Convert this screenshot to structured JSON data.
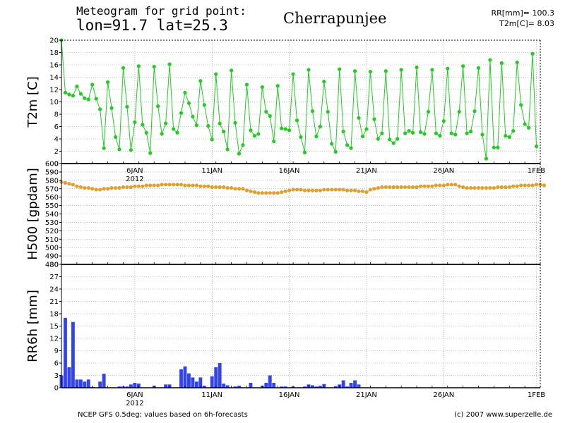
{
  "header": {
    "line1": "Meteogram for grid point:",
    "line2": "lon=91.7 lat=25.3",
    "location": "Cherrapunjee",
    "rr_total": "RR[mm]= 100.3",
    "t2m_current": "T2m[C]= 8.03"
  },
  "footer": {
    "source": "NCEP GFS 0.5deg; values based on 6h-forecasts",
    "copyright": "(c) 2007 www.superzelle.de"
  },
  "colors": {
    "t2m": "#22cc22",
    "h500": "#e0a030",
    "rr6h": "#3344ee",
    "grid": "#888888"
  },
  "chart_data": [
    {
      "type": "line",
      "ylabel": "T2m [C]",
      "ylim": [
        0,
        20
      ],
      "yticks": [
        0,
        2,
        4,
        6,
        8,
        10,
        12,
        14,
        16,
        18,
        20
      ],
      "xlim": [
        0,
        124
      ],
      "date_ticks": [
        {
          "x": 19,
          "label": "6JAN",
          "sub": "2012"
        },
        {
          "x": 39,
          "label": "11JAN",
          "sub": ""
        },
        {
          "x": 59,
          "label": "16JAN",
          "sub": ""
        },
        {
          "x": 79,
          "label": "21JAN",
          "sub": ""
        },
        {
          "x": 99,
          "label": "26JAN",
          "sub": ""
        },
        {
          "x": 123,
          "label": "1FEB",
          "sub": ""
        }
      ],
      "show_dates": true,
      "grid": true,
      "series": [
        {
          "values": [
            20.0,
            11.5,
            11.2,
            11.0,
            12.5,
            11.3,
            10.6,
            10.4,
            12.8,
            10.5,
            8.8,
            2.5,
            13.2,
            9.0,
            4.3,
            2.3,
            15.5,
            9.2,
            2.2,
            6.7,
            15.8,
            6.3,
            5.0,
            1.7,
            15.7,
            9.3,
            4.8,
            6.5,
            16.1,
            5.6,
            5.0,
            8.2,
            11.5,
            9.8,
            7.6,
            6.2,
            13.4,
            9.5,
            6.1,
            3.9,
            14.5,
            6.5,
            5.2,
            2.3,
            15.1,
            6.6,
            1.6,
            3.0,
            12.8,
            5.4,
            4.5,
            4.8,
            12.4,
            8.4,
            7.7,
            3.6,
            12.6,
            5.7,
            5.6,
            5.4,
            14.5,
            7.0,
            4.3,
            1.8,
            15.2,
            8.5,
            4.4,
            6.0,
            13.3,
            8.4,
            3.2,
            1.9,
            15.3,
            5.2,
            3.0,
            2.5,
            15.0,
            7.4,
            4.4,
            5.6,
            14.9,
            7.2,
            4.0,
            4.9,
            15.0,
            3.9,
            3.3,
            4.0,
            15.2,
            4.9,
            5.3,
            5.0,
            15.6,
            5.1,
            4.8,
            8.4,
            15.2,
            4.9,
            4.5,
            6.9,
            15.4,
            4.9,
            4.7,
            8.4,
            15.8,
            4.9,
            5.2,
            8.5,
            15.5,
            4.7,
            0.8,
            16.8,
            2.6,
            2.6,
            16.3,
            4.5,
            4.3,
            5.3,
            16.4,
            9.5,
            6.4,
            5.8,
            17.8,
            2.8
          ]
        }
      ]
    },
    {
      "type": "line",
      "ylabel": "H500 [gpdam]",
      "ylim": [
        480,
        600
      ],
      "yticks": [
        480,
        490,
        500,
        510,
        520,
        530,
        540,
        550,
        560,
        570,
        580,
        590,
        600
      ],
      "xlim": [
        0,
        124
      ],
      "date_ticks": [
        {
          "x": 19,
          "label": "6JAN",
          "sub": ""
        },
        {
          "x": 39,
          "label": "11JAN",
          "sub": ""
        },
        {
          "x": 59,
          "label": "16JAN",
          "sub": ""
        },
        {
          "x": 79,
          "label": "21JAN",
          "sub": ""
        },
        {
          "x": 99,
          "label": "26JAN",
          "sub": ""
        },
        {
          "x": 123,
          "label": "1FEB",
          "sub": ""
        }
      ],
      "show_dates": false,
      "grid": true,
      "series": [
        {
          "values": [
            578,
            577,
            576,
            575,
            573,
            572,
            571,
            571,
            570,
            569,
            569,
            570,
            570,
            571,
            571,
            571,
            572,
            572,
            572,
            573,
            573,
            573,
            574,
            574,
            574,
            574,
            575,
            575,
            575,
            575,
            575,
            575,
            574,
            574,
            574,
            574,
            573,
            573,
            573,
            572,
            572,
            572,
            572,
            571,
            571,
            570,
            570,
            570,
            568,
            567,
            566,
            565,
            565,
            565,
            565,
            565,
            565,
            566,
            567,
            568,
            569,
            569,
            569,
            568,
            568,
            568,
            568,
            568,
            569,
            569,
            569,
            569,
            569,
            569,
            568,
            568,
            568,
            567,
            567,
            566,
            569,
            570,
            571,
            572,
            572,
            572,
            572,
            572,
            572,
            572,
            572,
            572,
            572,
            573,
            573,
            573,
            573,
            574,
            574,
            574,
            575,
            575,
            575,
            573,
            572,
            571,
            571,
            571,
            571,
            571,
            571,
            571,
            571,
            572,
            572,
            572,
            572,
            573,
            573,
            574,
            574,
            574,
            574,
            575,
            575,
            574
          ]
        }
      ]
    },
    {
      "type": "bar",
      "ylabel": "RR6h [mm]",
      "ylim": [
        0,
        30
      ],
      "yticks": [
        0,
        3,
        6,
        9,
        12,
        15,
        18,
        21,
        24,
        27,
        30
      ],
      "xlim": [
        0,
        124
      ],
      "date_ticks": [
        {
          "x": 19,
          "label": "6JAN",
          "sub": "2012"
        },
        {
          "x": 39,
          "label": "11JAN",
          "sub": ""
        },
        {
          "x": 59,
          "label": "16JAN",
          "sub": ""
        },
        {
          "x": 79,
          "label": "21JAN",
          "sub": ""
        },
        {
          "x": 99,
          "label": "26JAN",
          "sub": ""
        },
        {
          "x": 123,
          "label": "1FEB",
          "sub": ""
        }
      ],
      "show_dates": true,
      "grid": true,
      "series": [
        {
          "values": [
            3.0,
            17.0,
            5.0,
            16.0,
            2.0,
            2.0,
            1.5,
            2.0,
            0.2,
            0.0,
            1.5,
            3.4,
            0.0,
            0.0,
            0.0,
            0.3,
            0.3,
            0.3,
            0.8,
            1.2,
            1.0,
            0.0,
            0.0,
            0.0,
            0.5,
            0.0,
            0.0,
            0.8,
            0.8,
            0.0,
            0.0,
            4.5,
            5.2,
            3.5,
            2.5,
            1.5,
            2.5,
            0.5,
            0.0,
            2.8,
            5.0,
            6.0,
            1.0,
            0.6,
            0.0,
            0.3,
            0.5,
            0.0,
            0.0,
            1.2,
            0.0,
            0.0,
            0.5,
            1.2,
            3.0,
            1.2,
            0.0,
            0.3,
            0.3,
            0.0,
            0.3,
            0.0,
            0.0,
            0.3,
            0.8,
            0.6,
            0.3,
            0.5,
            0.9,
            0.0,
            0.0,
            0.4,
            0.8,
            1.8,
            0.3,
            1.2,
            1.8,
            0.8,
            0.0,
            0.0,
            0.0,
            0.0,
            0.0,
            0.0,
            0.0,
            0.0,
            0.0,
            0.0,
            0.0,
            0.0,
            0.0,
            0.0,
            0.0,
            0.0,
            0.0,
            0.0,
            0.0,
            0.0,
            0.0,
            0.0,
            0.0,
            0.0,
            0.0,
            0.0,
            0.0,
            0.0,
            0.0,
            0.0,
            0.0,
            0.0,
            0.0,
            0.0,
            0.0,
            0.0,
            0.0,
            0.0,
            0.0,
            0.0,
            0.0,
            0.0,
            0.0,
            0.0,
            0.0,
            0.0,
            0.0
          ]
        }
      ]
    }
  ]
}
